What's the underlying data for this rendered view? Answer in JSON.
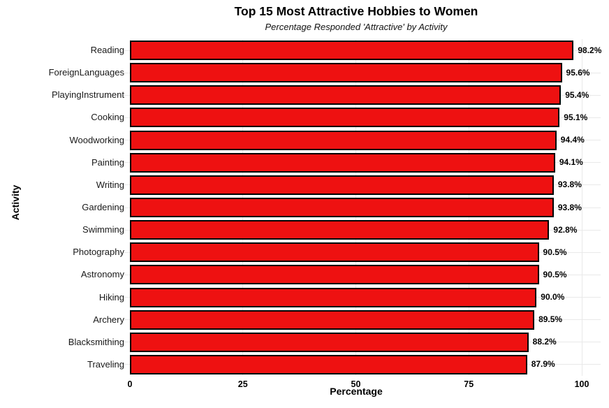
{
  "title": "Top 15 Most Attractive Hobbies to Women",
  "subtitle": "Percentage Responded 'Attractive' by Activity",
  "chart_data": {
    "type": "bar",
    "orientation": "horizontal",
    "title": "Top 15 Most Attractive Hobbies to Women",
    "subtitle": "Percentage Responded 'Attractive' by Activity",
    "xlabel": "Percentage",
    "ylabel": "Activity",
    "xlim": [
      0,
      100
    ],
    "xticks": [
      0,
      25,
      50,
      75,
      100
    ],
    "xtick_labels": [
      "0",
      "25",
      "50",
      "75",
      "100"
    ],
    "grid": true,
    "legend": "none",
    "categories": [
      "Reading",
      "ForeignLanguages",
      "PlayingInstrument",
      "Cooking",
      "Woodworking",
      "Painting",
      "Writing",
      "Gardening",
      "Swimming",
      "Photography",
      "Astronomy",
      "Hiking",
      "Archery",
      "Blacksmithing",
      "Traveling"
    ],
    "values": [
      98.2,
      95.6,
      95.4,
      95.1,
      94.4,
      94.1,
      93.8,
      93.8,
      92.8,
      90.5,
      90.5,
      90.0,
      89.5,
      88.2,
      87.9
    ],
    "value_labels": [
      "98.2%",
      "95.6%",
      "95.4%",
      "95.1%",
      "94.4%",
      "94.1%",
      "93.8%",
      "93.8%",
      "92.8%",
      "90.5%",
      "90.5%",
      "90.0%",
      "89.5%",
      "88.2%",
      "87.9%"
    ],
    "colors": {
      "bar_fill": "#ee1111",
      "bar_edge": "#000000",
      "gridline": "#e9e9e9",
      "background": "#ffffff",
      "text": "#000000"
    }
  }
}
